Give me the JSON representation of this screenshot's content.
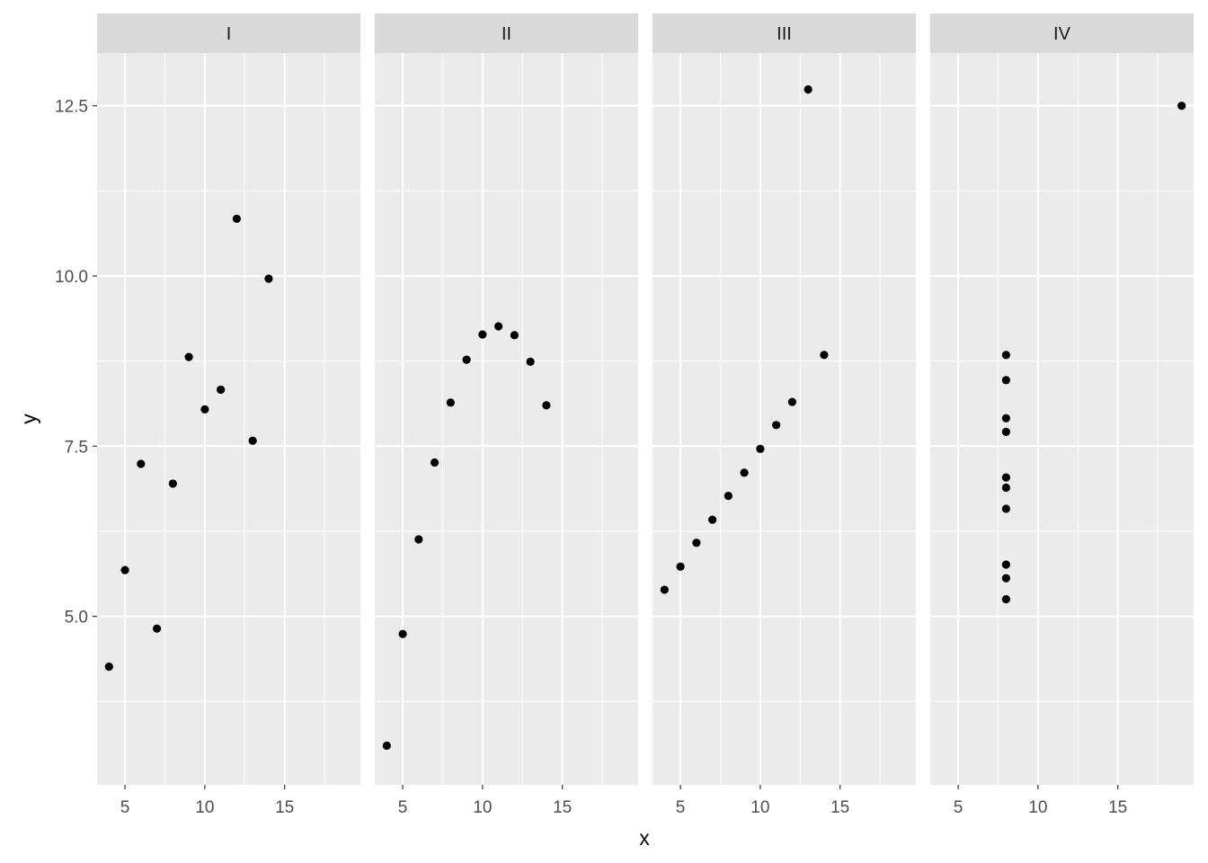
{
  "chart_data": {
    "type": "scatter",
    "facet_type": "facet_wrap",
    "xlabel": "x",
    "ylabel": "y",
    "xlim": [
      3.25,
      19.75
    ],
    "ylim": [
      2.525,
      13.275
    ],
    "x_ticks": [
      5,
      10,
      15
    ],
    "y_ticks": [
      5.0,
      7.5,
      10.0,
      12.5
    ],
    "y_tick_labels": [
      "5.0",
      "7.5",
      "10.0",
      "12.5"
    ],
    "grid": true,
    "panel_background": "#ebebeb",
    "strip_background": "#d9d9d9",
    "point_color": "#000000",
    "facets": [
      {
        "label": "I",
        "points": [
          {
            "x": 10,
            "y": 8.04
          },
          {
            "x": 8,
            "y": 6.95
          },
          {
            "x": 13,
            "y": 7.58
          },
          {
            "x": 9,
            "y": 8.81
          },
          {
            "x": 11,
            "y": 8.33
          },
          {
            "x": 14,
            "y": 9.96
          },
          {
            "x": 6,
            "y": 7.24
          },
          {
            "x": 4,
            "y": 4.26
          },
          {
            "x": 12,
            "y": 10.84
          },
          {
            "x": 7,
            "y": 4.82
          },
          {
            "x": 5,
            "y": 5.68
          }
        ]
      },
      {
        "label": "II",
        "points": [
          {
            "x": 10,
            "y": 9.14
          },
          {
            "x": 8,
            "y": 8.14
          },
          {
            "x": 13,
            "y": 8.74
          },
          {
            "x": 9,
            "y": 8.77
          },
          {
            "x": 11,
            "y": 9.26
          },
          {
            "x": 14,
            "y": 8.1
          },
          {
            "x": 6,
            "y": 6.13
          },
          {
            "x": 4,
            "y": 3.1
          },
          {
            "x": 12,
            "y": 9.13
          },
          {
            "x": 7,
            "y": 7.26
          },
          {
            "x": 5,
            "y": 4.74
          }
        ]
      },
      {
        "label": "III",
        "points": [
          {
            "x": 10,
            "y": 7.46
          },
          {
            "x": 8,
            "y": 6.77
          },
          {
            "x": 13,
            "y": 12.74
          },
          {
            "x": 9,
            "y": 7.11
          },
          {
            "x": 11,
            "y": 7.81
          },
          {
            "x": 14,
            "y": 8.84
          },
          {
            "x": 6,
            "y": 6.08
          },
          {
            "x": 4,
            "y": 5.39
          },
          {
            "x": 12,
            "y": 8.15
          },
          {
            "x": 7,
            "y": 6.42
          },
          {
            "x": 5,
            "y": 5.73
          }
        ]
      },
      {
        "label": "IV",
        "points": [
          {
            "x": 8,
            "y": 6.58
          },
          {
            "x": 8,
            "y": 5.76
          },
          {
            "x": 8,
            "y": 7.71
          },
          {
            "x": 8,
            "y": 8.84
          },
          {
            "x": 8,
            "y": 8.47
          },
          {
            "x": 8,
            "y": 7.04
          },
          {
            "x": 8,
            "y": 5.25
          },
          {
            "x": 19,
            "y": 12.5
          },
          {
            "x": 8,
            "y": 5.56
          },
          {
            "x": 8,
            "y": 7.91
          },
          {
            "x": 8,
            "y": 6.89
          }
        ]
      }
    ]
  }
}
